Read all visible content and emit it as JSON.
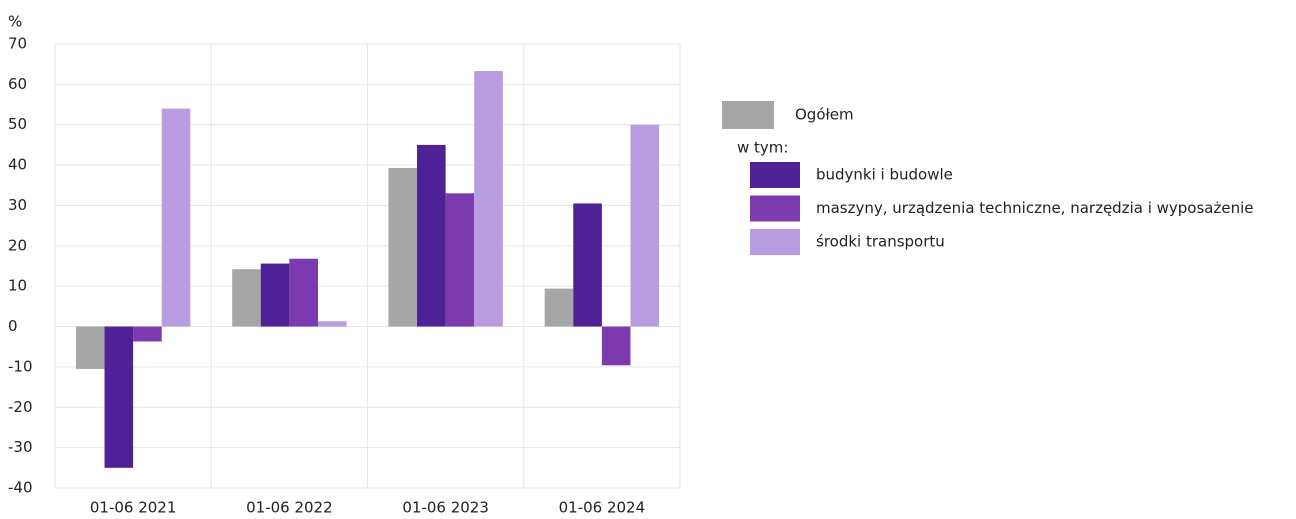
{
  "chart_data": {
    "type": "bar",
    "y_label": "%",
    "categories": [
      "01-06 2021",
      "01-06 2022",
      "01-06 2023",
      "01-06 2024"
    ],
    "series": [
      {
        "name": "Ogółem",
        "color": "#a6a6a6",
        "values": [
          -10.5,
          14.2,
          39.3,
          9.4
        ]
      },
      {
        "name": "budynki i budowle",
        "color": "#4f2196",
        "values": [
          -35,
          15.6,
          45,
          30.5
        ]
      },
      {
        "name": "maszyny, urządzenia techniczne, narzędzia i wyposażenie",
        "color": "#7b3aad",
        "values": [
          -3.7,
          16.8,
          33,
          -9.6
        ]
      },
      {
        "name": "środki transportu",
        "color": "#b89de0",
        "values": [
          54,
          1.3,
          63.3,
          50
        ]
      }
    ],
    "legend_subheading": "w tym:",
    "ylim": [
      -40,
      70
    ],
    "yticks": [
      -40,
      -30,
      -20,
      -10,
      0,
      10,
      20,
      30,
      40,
      50,
      60,
      70
    ],
    "grid": true
  }
}
